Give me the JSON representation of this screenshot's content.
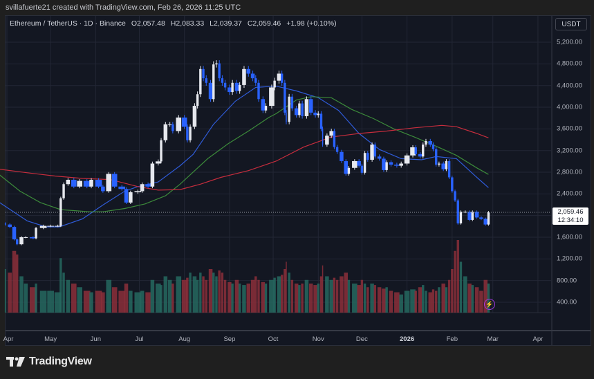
{
  "header": {
    "credit": "svillafuerte21 created with TradingView.com, Feb 26, 2026 11:25 UTC"
  },
  "legend": {
    "symbol": "Ethereum / TetherUS · 1D · Binance",
    "open": "O2,057.48",
    "high": "H2,083.33",
    "low": "L2,039.37",
    "close": "C2,059.46",
    "change": "+1.98 (+0.10%)"
  },
  "currency_button": "USDT",
  "last_price": {
    "price": "2,059.46",
    "countdown": "12:34:10"
  },
  "logo": {
    "text": "TradingView"
  },
  "colors": {
    "up": "#e6e8ee",
    "down": "#2962ff",
    "ma_fast": "#2f5bd8",
    "ma_mid": "#3c8a3a",
    "ma_slow": "#c62d3d",
    "vol_up": "#26685f",
    "vol_down": "#8c2f3a",
    "grid": "#232735",
    "background": "#131722"
  },
  "chart_data": {
    "type": "candlestick",
    "title": "Ethereum / TetherUS · 1D · Binance",
    "ylim": [
      400,
      5400
    ],
    "y_ticks": [
      "5,200.00",
      "4,800.00",
      "4,400.00",
      "4,000.00",
      "3,600.00",
      "3,200.00",
      "2,800.00",
      "2,400.00",
      "1,600.00",
      "1,200.00",
      "800.00",
      "400.00"
    ],
    "y_tick_values": [
      5200,
      4800,
      4400,
      4000,
      3600,
      3200,
      2800,
      2400,
      1600,
      1200,
      800,
      400
    ],
    "x_ticks": [
      {
        "label": "Apr",
        "date": "2025-04-01"
      },
      {
        "label": "May",
        "date": "2025-05-01"
      },
      {
        "label": "Jun",
        "date": "2025-06-01"
      },
      {
        "label": "Jul",
        "date": "2025-07-01"
      },
      {
        "label": "Aug",
        "date": "2025-08-01"
      },
      {
        "label": "Sep",
        "date": "2025-09-01"
      },
      {
        "label": "Oct",
        "date": "2025-10-01"
      },
      {
        "label": "Nov",
        "date": "2025-11-01"
      },
      {
        "label": "Dec",
        "date": "2025-12-01"
      },
      {
        "label": "2026",
        "date": "2026-01-01",
        "bold": true
      },
      {
        "label": "Feb",
        "date": "2026-02-01"
      },
      {
        "label": "Mar",
        "date": "2026-03-01"
      },
      {
        "label": "Apr",
        "date": "2026-04-01"
      }
    ],
    "grid": true,
    "last_close": 2059.46,
    "closes_with_volume": [
      [
        "2025-03-31",
        1835,
        60
      ],
      [
        "2025-04-03",
        1790,
        55
      ],
      [
        "2025-04-06",
        1560,
        85
      ],
      [
        "2025-04-08",
        1470,
        80
      ],
      [
        "2025-04-11",
        1600,
        50
      ],
      [
        "2025-04-14",
        1600,
        40
      ],
      [
        "2025-04-19",
        1580,
        35
      ],
      [
        "2025-04-21",
        1770,
        40
      ],
      [
        "2025-04-26",
        1810,
        30
      ],
      [
        "2025-05-01",
        1810,
        30
      ],
      [
        "2025-05-06",
        1810,
        28
      ],
      [
        "2025-05-08",
        2320,
        75
      ],
      [
        "2025-05-10",
        2580,
        55
      ],
      [
        "2025-05-13",
        2660,
        45
      ],
      [
        "2025-05-17",
        2535,
        40
      ],
      [
        "2025-05-21",
        2640,
        35
      ],
      [
        "2025-05-26",
        2535,
        30
      ],
      [
        "2025-05-29",
        2660,
        28
      ],
      [
        "2025-06-03",
        2535,
        30
      ],
      [
        "2025-06-06",
        2450,
        28
      ],
      [
        "2025-06-10",
        2770,
        45
      ],
      [
        "2025-06-14",
        2535,
        35
      ],
      [
        "2025-06-19",
        2490,
        30
      ],
      [
        "2025-06-22",
        2240,
        40
      ],
      [
        "2025-06-25",
        2430,
        30
      ],
      [
        "2025-06-30",
        2450,
        28
      ],
      [
        "2025-07-03",
        2580,
        30
      ],
      [
        "2025-07-07",
        2535,
        28
      ],
      [
        "2025-07-10",
        2960,
        45
      ],
      [
        "2025-07-14",
        3000,
        40
      ],
      [
        "2025-07-16",
        3390,
        38
      ],
      [
        "2025-07-19",
        3685,
        50
      ],
      [
        "2025-07-22",
        3685,
        45
      ],
      [
        "2025-07-24",
        3560,
        40
      ],
      [
        "2025-07-28",
        3810,
        50
      ],
      [
        "2025-08-01",
        3640,
        45
      ],
      [
        "2025-08-03",
        3390,
        48
      ],
      [
        "2025-08-05",
        3640,
        55
      ],
      [
        "2025-08-08",
        4025,
        50
      ],
      [
        "2025-08-10",
        4240,
        45
      ],
      [
        "2025-08-12",
        4705,
        55
      ],
      [
        "2025-08-14",
        4535,
        50
      ],
      [
        "2025-08-16",
        4450,
        45
      ],
      [
        "2025-08-19",
        4150,
        60
      ],
      [
        "2025-08-21",
        4790,
        55
      ],
      [
        "2025-08-23",
        4810,
        50
      ],
      [
        "2025-08-25",
        4535,
        58
      ],
      [
        "2025-08-27",
        4450,
        55
      ],
      [
        "2025-08-29",
        4365,
        45
      ],
      [
        "2025-09-01",
        4280,
        42
      ],
      [
        "2025-09-03",
        4450,
        40
      ],
      [
        "2025-09-06",
        4300,
        45
      ],
      [
        "2025-09-08",
        4410,
        40
      ],
      [
        "2025-09-11",
        4705,
        38
      ],
      [
        "2025-09-14",
        4620,
        40
      ],
      [
        "2025-09-17",
        4535,
        45
      ],
      [
        "2025-09-19",
        4450,
        50
      ],
      [
        "2025-09-21",
        4150,
        45
      ],
      [
        "2025-09-24",
        3940,
        42
      ],
      [
        "2025-09-26",
        4025,
        40
      ],
      [
        "2025-09-30",
        4365,
        45
      ],
      [
        "2025-10-02",
        4490,
        48
      ],
      [
        "2025-10-05",
        4620,
        50
      ],
      [
        "2025-10-07",
        4450,
        52
      ],
      [
        "2025-10-09",
        3900,
        60
      ],
      [
        "2025-10-10",
        3730,
        70
      ],
      [
        "2025-10-12",
        4195,
        55
      ],
      [
        "2025-10-14",
        3980,
        45
      ],
      [
        "2025-10-17",
        3855,
        40
      ],
      [
        "2025-10-19",
        4070,
        38
      ],
      [
        "2025-10-21",
        3835,
        40
      ],
      [
        "2025-10-24",
        4150,
        45
      ],
      [
        "2025-10-27",
        3900,
        40
      ],
      [
        "2025-10-30",
        3855,
        38
      ],
      [
        "2025-11-01",
        3880,
        40
      ],
      [
        "2025-11-03",
        3600,
        50
      ],
      [
        "2025-11-04",
        3310,
        65
      ],
      [
        "2025-11-07",
        3475,
        50
      ],
      [
        "2025-11-10",
        3560,
        45
      ],
      [
        "2025-11-12",
        3265,
        48
      ],
      [
        "2025-11-14",
        3175,
        45
      ],
      [
        "2025-11-17",
        3005,
        50
      ],
      [
        "2025-11-20",
        2770,
        55
      ],
      [
        "2025-11-22",
        2880,
        45
      ],
      [
        "2025-11-26",
        3005,
        40
      ],
      [
        "2025-11-29",
        2920,
        38
      ],
      [
        "2025-12-01",
        2790,
        45
      ],
      [
        "2025-12-03",
        3155,
        40
      ],
      [
        "2025-12-05",
        3030,
        35
      ],
      [
        "2025-12-08",
        3310,
        40
      ],
      [
        "2025-12-10",
        3090,
        38
      ],
      [
        "2025-12-13",
        3050,
        35
      ],
      [
        "2025-12-16",
        2840,
        33
      ],
      [
        "2025-12-18",
        2985,
        35
      ],
      [
        "2025-12-21",
        2940,
        30
      ],
      [
        "2025-12-25",
        2920,
        28
      ],
      [
        "2025-12-28",
        2960,
        25
      ],
      [
        "2026-01-01",
        3110,
        30
      ],
      [
        "2026-01-05",
        3260,
        32
      ],
      [
        "2026-01-07",
        3135,
        30
      ],
      [
        "2026-01-10",
        3090,
        35
      ],
      [
        "2026-01-12",
        3310,
        38
      ],
      [
        "2026-01-14",
        3375,
        30
      ],
      [
        "2026-01-17",
        3310,
        28
      ],
      [
        "2026-01-19",
        3225,
        32
      ],
      [
        "2026-01-21",
        2940,
        30
      ],
      [
        "2026-01-23",
        2960,
        35
      ],
      [
        "2026-01-26",
        2855,
        40
      ],
      [
        "2026-01-28",
        3005,
        35
      ],
      [
        "2026-01-30",
        2705,
        45
      ],
      [
        "2026-02-01",
        2450,
        60
      ],
      [
        "2026-02-03",
        2280,
        85
      ],
      [
        "2026-02-05",
        1855,
        100
      ],
      [
        "2026-02-07",
        2070,
        70
      ],
      [
        "2026-02-10",
        2070,
        50
      ],
      [
        "2026-02-13",
        1920,
        40
      ],
      [
        "2026-02-15",
        2070,
        38
      ],
      [
        "2026-02-18",
        1965,
        35
      ],
      [
        "2026-02-21",
        1940,
        30
      ],
      [
        "2026-02-24",
        1835,
        45
      ],
      [
        "2026-02-26",
        2059.46,
        40
      ]
    ],
    "moving_averages": [
      {
        "key": "fast",
        "points": [
          [
            "2025-03-27",
            2240
          ],
          [
            "2025-04-15",
            1900
          ],
          [
            "2025-04-28",
            1790
          ],
          [
            "2025-05-07",
            1790
          ],
          [
            "2025-05-23",
            1940
          ],
          [
            "2025-06-06",
            2195
          ],
          [
            "2025-06-21",
            2450
          ],
          [
            "2025-06-30",
            2535
          ],
          [
            "2025-07-14",
            2620
          ],
          [
            "2025-07-29",
            2920
          ],
          [
            "2025-08-07",
            3130
          ],
          [
            "2025-08-21",
            3685
          ],
          [
            "2025-09-05",
            4110
          ],
          [
            "2025-09-19",
            4365
          ],
          [
            "2025-10-03",
            4390
          ],
          [
            "2025-10-17",
            4300
          ],
          [
            "2025-11-01",
            4175
          ],
          [
            "2025-11-15",
            3940
          ],
          [
            "2025-11-29",
            3515
          ],
          [
            "2025-12-13",
            3220
          ],
          [
            "2025-12-28",
            3050
          ],
          [
            "2026-01-11",
            3030
          ],
          [
            "2026-01-21",
            3090
          ],
          [
            "2026-02-04",
            3050
          ],
          [
            "2026-02-18",
            2705
          ],
          [
            "2026-02-26",
            2515
          ]
        ]
      },
      {
        "key": "mid",
        "points": [
          [
            "2025-03-27",
            2750
          ],
          [
            "2025-04-10",
            2450
          ],
          [
            "2025-04-24",
            2240
          ],
          [
            "2025-05-08",
            2110
          ],
          [
            "2025-05-28",
            2070
          ],
          [
            "2025-06-06",
            2070
          ],
          [
            "2025-06-21",
            2130
          ],
          [
            "2025-07-05",
            2215
          ],
          [
            "2025-07-19",
            2365
          ],
          [
            "2025-07-29",
            2580
          ],
          [
            "2025-08-17",
            3050
          ],
          [
            "2025-08-31",
            3325
          ],
          [
            "2025-09-14",
            3560
          ],
          [
            "2025-09-28",
            3810
          ],
          [
            "2025-10-03",
            3880
          ],
          [
            "2025-10-17",
            4135
          ],
          [
            "2025-10-27",
            4195
          ],
          [
            "2025-11-10",
            4175
          ],
          [
            "2025-11-24",
            3960
          ],
          [
            "2025-12-09",
            3790
          ],
          [
            "2025-12-23",
            3600
          ],
          [
            "2026-01-06",
            3450
          ],
          [
            "2026-01-21",
            3280
          ],
          [
            "2026-02-04",
            3110
          ],
          [
            "2026-02-18",
            2880
          ],
          [
            "2026-02-26",
            2760
          ]
        ]
      },
      {
        "key": "slow",
        "points": [
          [
            "2025-03-27",
            2855
          ],
          [
            "2025-04-15",
            2790
          ],
          [
            "2025-05-04",
            2730
          ],
          [
            "2025-05-23",
            2685
          ],
          [
            "2025-06-11",
            2665
          ],
          [
            "2025-06-30",
            2535
          ],
          [
            "2025-07-14",
            2470
          ],
          [
            "2025-07-29",
            2480
          ],
          [
            "2025-08-12",
            2580
          ],
          [
            "2025-08-26",
            2705
          ],
          [
            "2025-09-14",
            2830
          ],
          [
            "2025-10-03",
            3005
          ],
          [
            "2025-10-22",
            3265
          ],
          [
            "2025-11-10",
            3450
          ],
          [
            "2025-11-29",
            3515
          ],
          [
            "2025-12-18",
            3560
          ],
          [
            "2026-01-06",
            3620
          ],
          [
            "2026-01-25",
            3665
          ],
          [
            "2026-02-04",
            3640
          ],
          [
            "2026-02-18",
            3515
          ],
          [
            "2026-02-26",
            3435
          ]
        ]
      }
    ]
  }
}
